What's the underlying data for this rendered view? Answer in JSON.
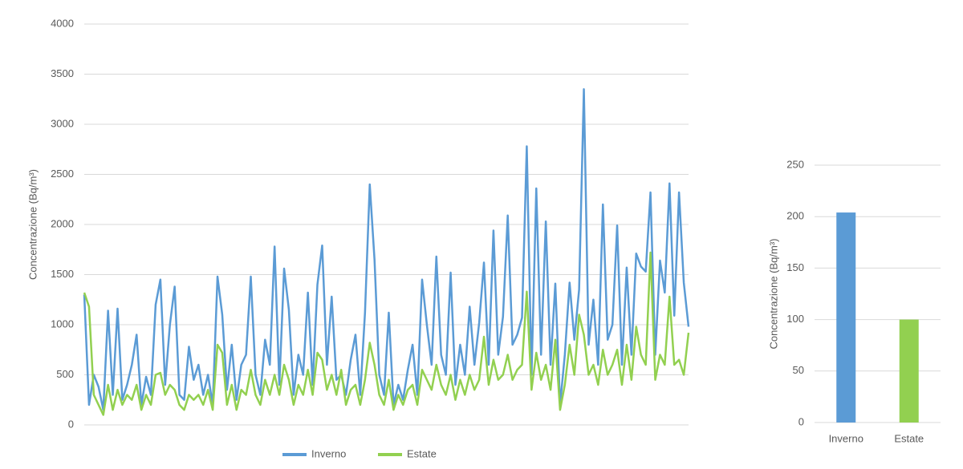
{
  "chart_data": [
    {
      "type": "line",
      "y_label": "Concentrazione (Bq/m³)",
      "ylim": [
        0,
        4000
      ],
      "yticks": [
        0,
        500,
        1000,
        1500,
        2000,
        2500,
        3000,
        3500,
        4000
      ],
      "grid": true,
      "legend": "bottom",
      "series": [
        {
          "name": "Inverno",
          "color": "#5b9bd5",
          "values": [
            1300,
            200,
            500,
            380,
            150,
            1140,
            300,
            1160,
            250,
            400,
            600,
            900,
            200,
            480,
            300,
            1200,
            1450,
            400,
            1000,
            1380,
            300,
            250,
            780,
            450,
            600,
            300,
            500,
            200,
            1480,
            1100,
            350,
            800,
            250,
            600,
            700,
            1480,
            500,
            300,
            850,
            600,
            1780,
            400,
            1560,
            1150,
            300,
            700,
            500,
            1320,
            400,
            1400,
            1790,
            600,
            1280,
            450,
            500,
            300,
            650,
            900,
            300,
            1120,
            2400,
            1650,
            500,
            300,
            1120,
            200,
            400,
            250,
            550,
            800,
            300,
            1450,
            1000,
            600,
            1680,
            700,
            500,
            1520,
            400,
            800,
            500,
            1180,
            600,
            1020,
            1620,
            600,
            1940,
            700,
            1080,
            2090,
            800,
            900,
            1070,
            2780,
            500,
            2360,
            700,
            2030,
            600,
            1410,
            200,
            700,
            1420,
            850,
            1350,
            3350,
            800,
            1250,
            600,
            2200,
            850,
            1000,
            1990,
            600,
            1570,
            700,
            1710,
            1580,
            1530,
            2320,
            700,
            1640,
            1320,
            2410,
            1090,
            2320,
            1420,
            980
          ]
        },
        {
          "name": "Estate",
          "color": "#92d050",
          "values": [
            1320,
            1180,
            300,
            200,
            100,
            400,
            150,
            350,
            200,
            300,
            250,
            400,
            150,
            300,
            200,
            500,
            520,
            300,
            400,
            350,
            200,
            150,
            300,
            250,
            300,
            200,
            350,
            150,
            800,
            720,
            200,
            400,
            150,
            350,
            300,
            550,
            300,
            200,
            450,
            300,
            500,
            300,
            600,
            450,
            200,
            400,
            300,
            550,
            300,
            720,
            650,
            350,
            500,
            300,
            550,
            200,
            350,
            400,
            200,
            450,
            820,
            600,
            300,
            200,
            450,
            150,
            300,
            200,
            350,
            400,
            200,
            550,
            450,
            350,
            600,
            400,
            300,
            500,
            250,
            450,
            300,
            500,
            350,
            450,
            880,
            400,
            650,
            450,
            500,
            700,
            450,
            550,
            600,
            1330,
            350,
            720,
            450,
            600,
            350,
            850,
            150,
            400,
            800,
            500,
            1100,
            900,
            500,
            600,
            400,
            750,
            500,
            600,
            750,
            400,
            800,
            450,
            980,
            700,
            600,
            1720,
            450,
            700,
            600,
            1280,
            600,
            650,
            500,
            920
          ]
        }
      ]
    },
    {
      "type": "bar",
      "y_label": "Concentrazione (Bq/m³)",
      "categories": [
        "Inverno",
        "Estate"
      ],
      "values": [
        204,
        100
      ],
      "colors": [
        "#5b9bd5",
        "#92d050"
      ],
      "ylim": [
        0,
        250
      ],
      "yticks": [
        0,
        50,
        100,
        150,
        200,
        250
      ],
      "grid": true
    }
  ]
}
